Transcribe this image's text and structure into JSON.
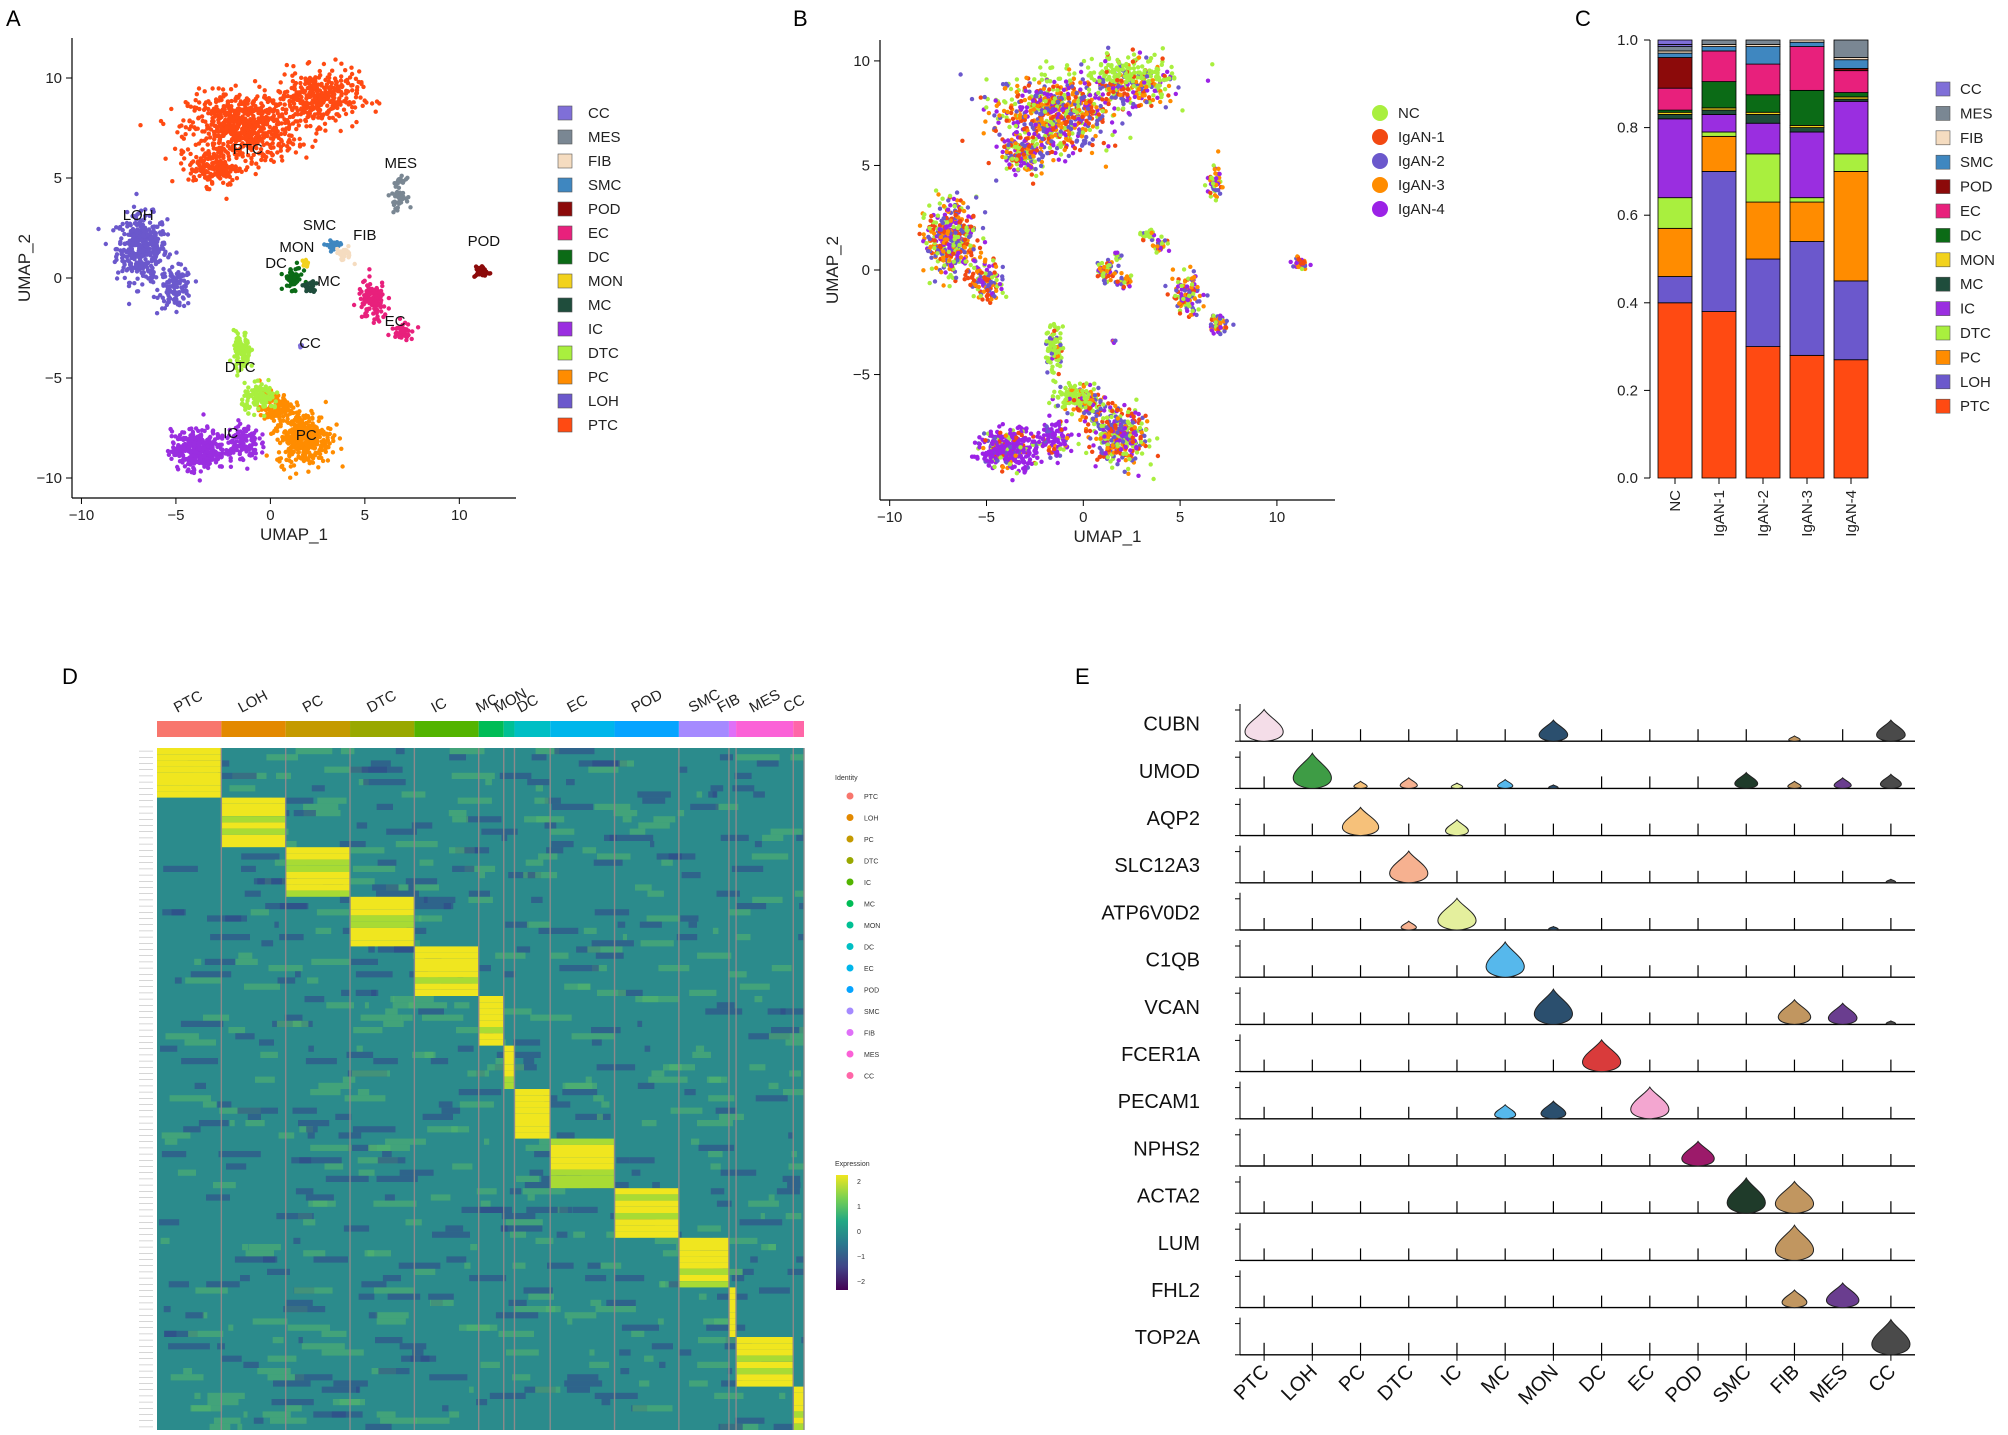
{
  "panels": {
    "A": {
      "label": "A"
    },
    "B": {
      "label": "B"
    },
    "C": {
      "label": "C"
    },
    "D": {
      "label": "D"
    },
    "E": {
      "label": "E"
    }
  },
  "colors": {
    "CC": "#7f6fd8",
    "MES": "#7a8793",
    "FIB": "#f5dcc0",
    "SMC": "#3f87c0",
    "POD": "#8c0a0a",
    "EC": "#e8207c",
    "DC": "#0b6b16",
    "MON": "#f2d21c",
    "MC": "#1f4d3c",
    "IC": "#9a2ee0",
    "DTC": "#a9ef3e",
    "PC": "#ff8c00",
    "LOH": "#6b58cc",
    "PTC": "#ff4a12",
    "NC": "#a9ef3e",
    "IgAN-1": "#f24812",
    "IgAN-2": "#6b58cc",
    "IgAN-3": "#ff8c00",
    "IgAN-4": "#9b22e6"
  },
  "chart_data": [
    {
      "id": "A",
      "type": "scatter",
      "title": "",
      "xlabel": "UMAP_1",
      "ylabel": "UMAP_2",
      "xlim": [
        -10.5,
        13
      ],
      "ylim": [
        -11,
        12
      ],
      "xticks": [
        -10,
        -5,
        0,
        5,
        10
      ],
      "yticks": [
        -10,
        -5,
        0,
        5,
        10
      ],
      "legend": [
        "CC",
        "MES",
        "FIB",
        "SMC",
        "POD",
        "EC",
        "DC",
        "MON",
        "MC",
        "IC",
        "DTC",
        "PC",
        "LOH",
        "PTC"
      ],
      "cluster_labels": [
        {
          "name": "PTC",
          "x": -1.2,
          "y": 6.2
        },
        {
          "name": "LOH",
          "x": -7.0,
          "y": 2.9
        },
        {
          "name": "MES",
          "x": 6.9,
          "y": 5.5
        },
        {
          "name": "POD",
          "x": 11.3,
          "y": 1.6
        },
        {
          "name": "SMC",
          "x": 2.6,
          "y": 2.4
        },
        {
          "name": "MON",
          "x": 1.4,
          "y": 1.3
        },
        {
          "name": "FIB",
          "x": 5.0,
          "y": 1.9
        },
        {
          "name": "DC",
          "x": 0.3,
          "y": 0.5
        },
        {
          "name": "MC",
          "x": 3.1,
          "y": -0.4
        },
        {
          "name": "EC",
          "x": 6.6,
          "y": -2.4
        },
        {
          "name": "CC",
          "x": 2.1,
          "y": -3.5
        },
        {
          "name": "DTC",
          "x": -1.6,
          "y": -4.7
        },
        {
          "name": "IC",
          "x": -2.1,
          "y": -8.0
        },
        {
          "name": "PC",
          "x": 1.9,
          "y": -8.1
        }
      ]
    },
    {
      "id": "B",
      "type": "scatter",
      "title": "",
      "xlabel": "UMAP_1",
      "ylabel": "UMAP_2",
      "xlim": [
        -10.5,
        13
      ],
      "ylim": [
        -11,
        11
      ],
      "xticks": [
        -10,
        -5,
        0,
        5,
        10
      ],
      "yticks": [
        -5,
        0,
        5,
        10
      ],
      "legend": [
        "NC",
        "IgAN-1",
        "IgAN-2",
        "IgAN-3",
        "IgAN-4"
      ]
    },
    {
      "id": "C",
      "type": "bar",
      "stacked": true,
      "categories": [
        "NC",
        "IgAN-1",
        "IgAN-2",
        "IgAN-3",
        "IgAN-4"
      ],
      "ylim": [
        0,
        1
      ],
      "yticks": [
        0.0,
        0.2,
        0.4,
        0.6,
        0.8,
        1.0
      ],
      "ytick_labels": [
        "0.0",
        "0.2",
        "0.4",
        "0.6",
        "0.8",
        "1.0"
      ],
      "legend": [
        "CC",
        "MES",
        "FIB",
        "SMC",
        "POD",
        "EC",
        "DC",
        "MON",
        "MC",
        "IC",
        "DTC",
        "PC",
        "LOH",
        "PTC"
      ],
      "series": [
        {
          "name": "PTC",
          "values": [
            0.4,
            0.38,
            0.3,
            0.28,
            0.27
          ]
        },
        {
          "name": "LOH",
          "values": [
            0.06,
            0.32,
            0.2,
            0.26,
            0.18
          ]
        },
        {
          "name": "PC",
          "values": [
            0.11,
            0.08,
            0.13,
            0.09,
            0.25
          ]
        },
        {
          "name": "DTC",
          "values": [
            0.07,
            0.01,
            0.11,
            0.01,
            0.04
          ]
        },
        {
          "name": "IC",
          "values": [
            0.18,
            0.04,
            0.07,
            0.15,
            0.12
          ]
        },
        {
          "name": "MC",
          "values": [
            0.01,
            0.01,
            0.02,
            0.01,
            0.005
          ]
        },
        {
          "name": "MON",
          "values": [
            0.005,
            0.005,
            0.005,
            0.005,
            0.005
          ]
        },
        {
          "name": "DC",
          "values": [
            0.005,
            0.06,
            0.04,
            0.08,
            0.01
          ]
        },
        {
          "name": "EC",
          "values": [
            0.05,
            0.07,
            0.07,
            0.1,
            0.05
          ]
        },
        {
          "name": "POD",
          "values": [
            0.07,
            0.0,
            0.0,
            0.0,
            0.005
          ]
        },
        {
          "name": "SMC",
          "values": [
            0.01,
            0.01,
            0.04,
            0.01,
            0.02
          ]
        },
        {
          "name": "FIB",
          "values": [
            0.005,
            0.005,
            0.005,
            0.005,
            0.005
          ]
        },
        {
          "name": "MES",
          "values": [
            0.01,
            0.01,
            0.03,
            0.01,
            0.05
          ]
        },
        {
          "name": "CC",
          "values": [
            0.005,
            0.005,
            0.005,
            0.005,
            0.005
          ]
        }
      ]
    },
    {
      "id": "D",
      "type": "heatmap",
      "groups": [
        "PTC",
        "LOH",
        "PC",
        "DTC",
        "IC",
        "MC",
        "MON",
        "DC",
        "EC",
        "POD",
        "SMC",
        "FIB",
        "MES",
        "CC"
      ],
      "group_colors": [
        "#f8766d",
        "#e38900",
        "#c49a00",
        "#99a800",
        "#53b400",
        "#00bc56",
        "#00c094",
        "#00bfc4",
        "#00b6eb",
        "#06a4ff",
        "#a58aff",
        "#df70f8",
        "#fb61d7",
        "#ff66a8"
      ],
      "group_widths": [
        9,
        9,
        9,
        9,
        9,
        3.5,
        1.5,
        5,
        9,
        9,
        7,
        1,
        8,
        1.5
      ],
      "legend_title": "Identity",
      "colorbar_title": "Expression",
      "colorbar_ticks": [
        "2",
        "1",
        "0",
        "−1",
        "−2"
      ]
    },
    {
      "id": "E",
      "type": "violin",
      "genes": [
        "CUBN",
        "UMOD",
        "AQP2",
        "SLC12A3",
        "ATP6V0D2",
        "C1QB",
        "VCAN",
        "FCER1A",
        "PECAM1",
        "NPHS2",
        "ACTA2",
        "LUM",
        "FHL2",
        "TOP2A"
      ],
      "clusters": [
        "PTC",
        "LOH",
        "PC",
        "DTC",
        "IC",
        "MC",
        "MON",
        "DC",
        "EC",
        "POD",
        "SMC",
        "FIB",
        "MES",
        "CC"
      ],
      "cluster_colors": [
        "#f4dde8",
        "#3e9c45",
        "#f6c17a",
        "#f6b190",
        "#e4ef9d",
        "#56b8ec",
        "#2b4f6e",
        "#d93b3b",
        "#f3a6d0",
        "#9c1a6a",
        "#1f3b2a",
        "#c19660",
        "#6a3d8f",
        "#4a4a4a"
      ],
      "expression": [
        [
          0.9,
          0,
          0,
          0,
          0,
          0,
          0.6,
          0,
          0,
          0,
          0,
          0.15,
          0,
          0.6
        ],
        [
          0,
          1.0,
          0.2,
          0.3,
          0.15,
          0.25,
          0.1,
          0,
          0,
          0,
          0.45,
          0.2,
          0.3,
          0.4
        ],
        [
          0,
          0,
          0.8,
          0,
          0.45,
          0,
          0,
          0,
          0,
          0,
          0,
          0,
          0,
          0
        ],
        [
          0,
          0,
          0,
          0.9,
          0,
          0,
          0,
          0,
          0,
          0,
          0,
          0,
          0,
          0.1
        ],
        [
          0,
          0,
          0,
          0.25,
          0.9,
          0,
          0.1,
          0,
          0,
          0,
          0,
          0,
          0,
          0
        ],
        [
          0,
          0,
          0,
          0,
          0,
          1.0,
          0,
          0,
          0,
          0,
          0,
          0,
          0,
          0
        ],
        [
          0,
          0,
          0,
          0,
          0,
          0,
          1.0,
          0,
          0,
          0,
          0,
          0.7,
          0.6,
          0.1
        ],
        [
          0,
          0,
          0,
          0,
          0,
          0,
          0,
          0.9,
          0,
          0,
          0,
          0,
          0,
          0
        ],
        [
          0,
          0,
          0,
          0,
          0,
          0.4,
          0.5,
          0,
          0.9,
          0,
          0,
          0,
          0,
          0
        ],
        [
          0,
          0,
          0,
          0,
          0,
          0,
          0,
          0,
          0,
          0.7,
          0,
          0,
          0,
          0
        ],
        [
          0,
          0,
          0,
          0,
          0,
          0,
          0,
          0,
          0,
          0,
          1.0,
          0.9,
          0,
          0
        ],
        [
          0,
          0,
          0,
          0,
          0,
          0,
          0,
          0,
          0,
          0,
          0,
          1.0,
          0,
          0
        ],
        [
          0,
          0,
          0,
          0,
          0,
          0,
          0,
          0,
          0,
          0,
          0,
          0.5,
          0.7,
          0
        ],
        [
          0,
          0,
          0,
          0,
          0,
          0,
          0,
          0,
          0,
          0,
          0,
          0,
          0,
          1.0
        ]
      ]
    }
  ]
}
